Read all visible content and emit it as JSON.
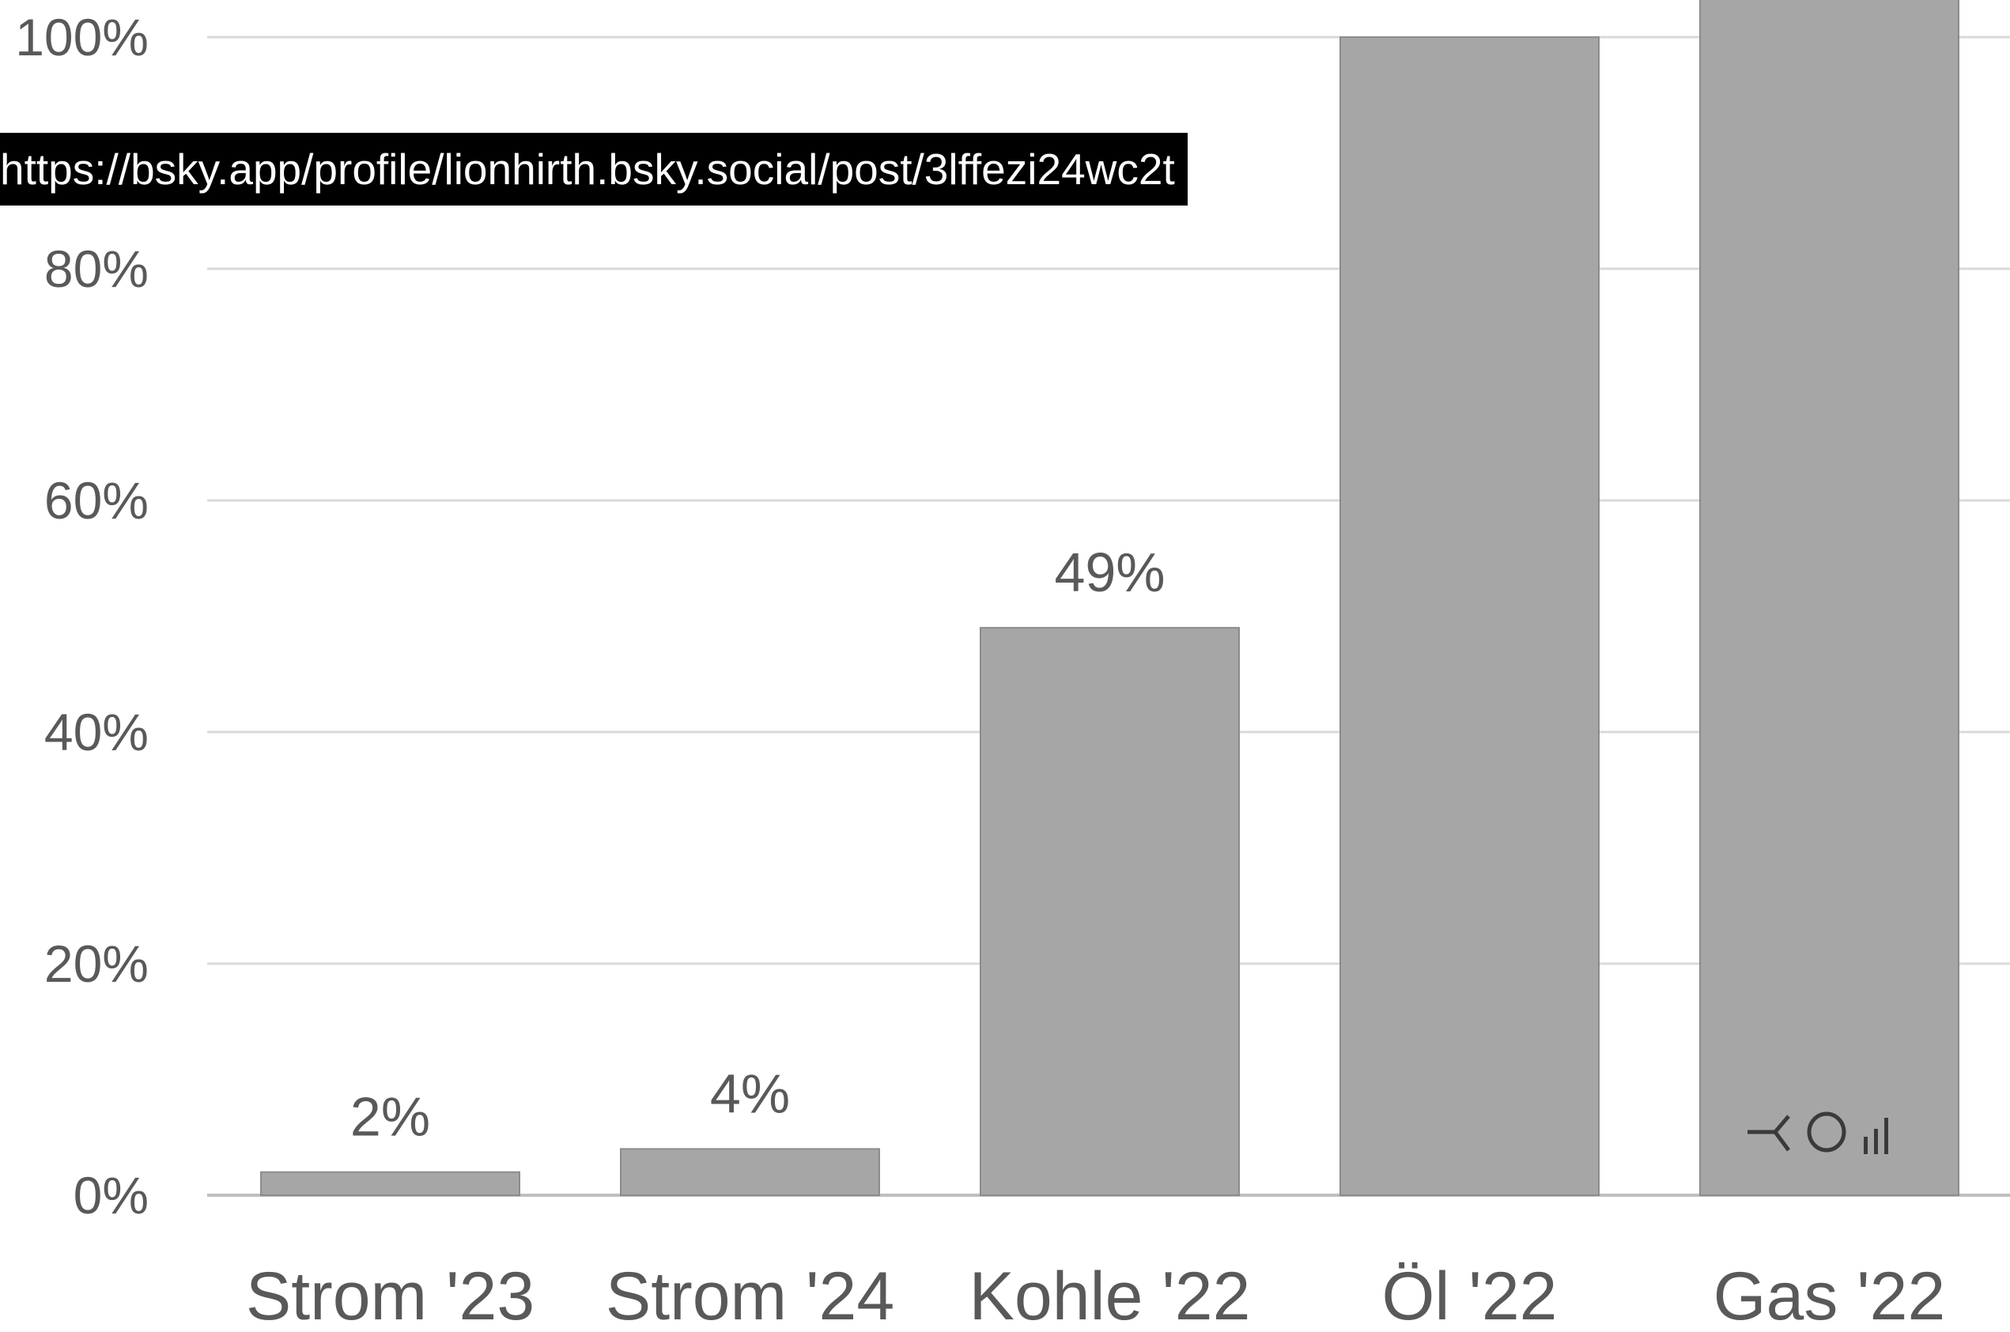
{
  "overlay": {
    "url": "https://bsky.app/profile/lionhirth.bsky.social/post/3lffezi24wc2t"
  },
  "watermark_icon": "brand-logo-icon",
  "colors": {
    "bar": "#a6a6a6",
    "bar_edge": "#8c8c8c",
    "grid": "#d9d9d9",
    "text": "#595959",
    "axis": "#bfbfbf"
  },
  "chart_data": {
    "type": "bar",
    "categories": [
      "Strom '23",
      "Strom '24",
      "Kohle '22",
      "Öl '22",
      "Gas '22"
    ],
    "values": [
      2,
      4,
      49,
      100,
      108
    ],
    "data_labels": [
      "2%",
      "4%",
      "49%",
      "",
      ""
    ],
    "yticks": [
      0,
      20,
      40,
      60,
      80,
      100
    ],
    "ytick_labels": [
      "0%",
      "20%",
      "40%",
      "60%",
      "80%",
      "100%"
    ],
    "ylim": [
      0,
      100
    ],
    "grid": true,
    "title": "",
    "xlabel": "",
    "ylabel": ""
  }
}
